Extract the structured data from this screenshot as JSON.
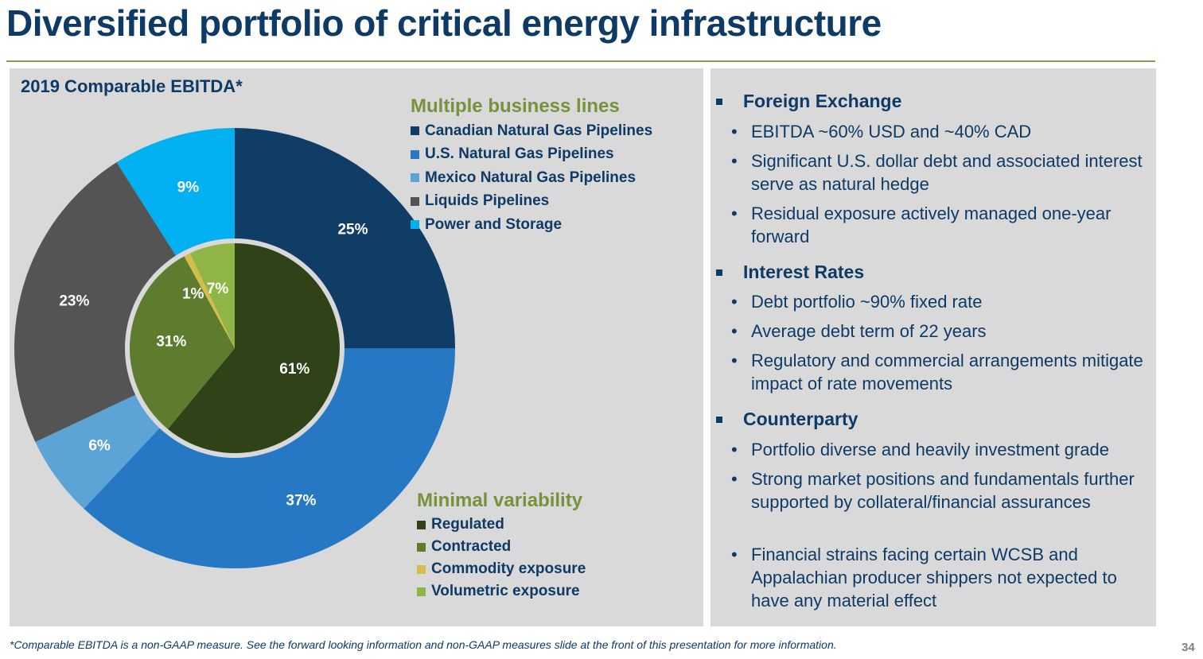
{
  "page": {
    "title": "Diversified portfolio of critical energy infrastructure",
    "footnote": "*Comparable EBITDA is a non-GAAP measure.  See the forward looking information and non-GAAP measures slide at the front of this presentation for more information.",
    "page_number": "34"
  },
  "chart_data": {
    "type": "pie",
    "title": "2019 Comparable EBITDA*",
    "outer": {
      "legend_title": "Multiple business lines",
      "slices": [
        {
          "label": "Canadian Natural Gas Pipelines",
          "value": 25,
          "display": "25%",
          "color": "#0f3d66"
        },
        {
          "label": "U.S. Natural Gas Pipelines",
          "value": 37,
          "display": "37%",
          "color": "#2678c4"
        },
        {
          "label": "Mexico Natural Gas Pipelines",
          "value": 6,
          "display": "6%",
          "color": "#5ca3d6"
        },
        {
          "label": "Liquids Pipelines",
          "value": 23,
          "display": "23%",
          "color": "#545454"
        },
        {
          "label": "Power and Storage",
          "value": 9,
          "display": "9%",
          "color": "#00b0f0"
        }
      ]
    },
    "inner": {
      "legend_title": "Minimal variability",
      "slices": [
        {
          "label": "Regulated",
          "value": 61,
          "display": "61%",
          "color": "#2f4218"
        },
        {
          "label": "Contracted",
          "value": 31,
          "display": "31%",
          "color": "#5e7c2e"
        },
        {
          "label": "Commodity exposure",
          "value": 1,
          "display": "1%",
          "color": "#d4bd4a"
        },
        {
          "label": "Volumetric exposure",
          "value": 7,
          "display": "7%",
          "color": "#8eb545"
        }
      ]
    },
    "legend_placement": "top-right (outer), bottom-right (inner)"
  },
  "risk": {
    "topics": [
      {
        "label": "Foreign Exchange",
        "bullets": [
          "EBITDA ~60% USD and ~40% CAD",
          "Significant U.S. dollar debt and associated interest serve as natural hedge",
          "Residual exposure actively managed one-year forward"
        ]
      },
      {
        "label": "Interest Rates",
        "bullets": [
          "Debt portfolio ~90% fixed rate",
          "Average debt term of 22 years",
          "Regulatory and commercial arrangements mitigate impact of rate movements"
        ]
      },
      {
        "label": "Counterparty",
        "bullets": [
          "Portfolio diverse and heavily investment grade",
          "Strong market positions and fundamentals further supported by collateral/financial assurances",
          "Financial strains facing certain WCSB and Appalachian producer shippers not expected to have any material effect"
        ]
      }
    ]
  }
}
